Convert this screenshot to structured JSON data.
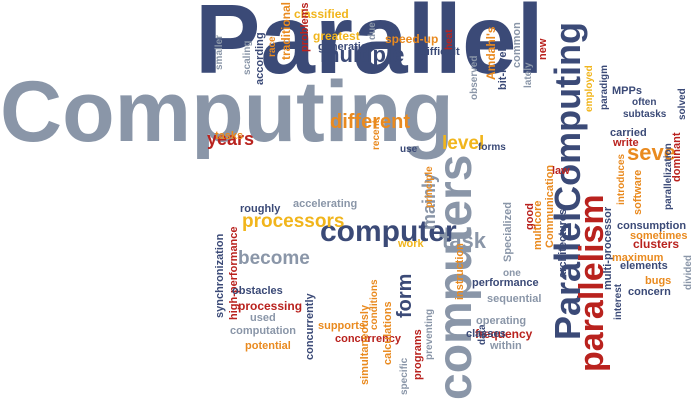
{
  "palette": {
    "navy": "#3b4a77",
    "gray": "#8a96a8",
    "orange": "#e98a1f",
    "yellow": "#f1b51c",
    "red": "#b9221e"
  },
  "words": [
    {
      "t": "Parallel",
      "c": "navy"
    },
    {
      "t": "Computing",
      "c": "gray"
    },
    {
      "t": "ParallelComputing",
      "c": "navy"
    },
    {
      "t": "computers",
      "c": "gray"
    },
    {
      "t": "parallelism",
      "c": "red"
    },
    {
      "t": "computer",
      "c": "navy"
    },
    {
      "t": "multiple",
      "c": "navy"
    },
    {
      "t": "different",
      "c": "orange"
    },
    {
      "t": "years",
      "c": "red"
    },
    {
      "t": "processors",
      "c": "yellow"
    },
    {
      "t": "become",
      "c": "gray"
    },
    {
      "t": "level",
      "c": "yellow"
    },
    {
      "t": "task",
      "c": "gray"
    },
    {
      "t": "form",
      "c": "navy"
    },
    {
      "t": "mainly",
      "c": "gray"
    },
    {
      "t": "seve",
      "c": "orange"
    },
    {
      "t": "classified",
      "c": "yellow"
    },
    {
      "t": "greatest",
      "c": "yellow"
    },
    {
      "t": "generation",
      "c": "navy"
    },
    {
      "t": "speed-up",
      "c": "orange"
    },
    {
      "t": "difficult",
      "c": "navy"
    },
    {
      "t": "heat",
      "c": "red"
    },
    {
      "t": "problems",
      "c": "red"
    },
    {
      "t": "traditional",
      "c": "orange"
    },
    {
      "t": "race",
      "c": "orange"
    },
    {
      "t": "according",
      "c": "navy"
    },
    {
      "t": "scaling",
      "c": "gray"
    },
    {
      "t": "smaller",
      "c": "gray"
    },
    {
      "t": "due",
      "c": "gray"
    },
    {
      "t": "Amdahl's",
      "c": "orange"
    },
    {
      "t": "bit-level",
      "c": "navy"
    },
    {
      "t": "common",
      "c": "gray"
    },
    {
      "t": "lately",
      "c": "gray"
    },
    {
      "t": "observed",
      "c": "gray"
    },
    {
      "t": "new",
      "c": "red"
    },
    {
      "t": "MPPs",
      "c": "navy"
    },
    {
      "t": "often",
      "c": "navy"
    },
    {
      "t": "subtasks",
      "c": "navy"
    },
    {
      "t": "paradigm",
      "c": "navy"
    },
    {
      "t": "employed",
      "c": "yellow"
    },
    {
      "t": "carried",
      "c": "navy"
    },
    {
      "t": "solved",
      "c": "navy"
    },
    {
      "t": "parallelization",
      "c": "navy"
    },
    {
      "t": "write",
      "c": "red"
    },
    {
      "t": "introduces",
      "c": "orange"
    },
    {
      "t": "dominant",
      "c": "red"
    },
    {
      "t": "software",
      "c": "orange"
    },
    {
      "t": "tasks",
      "c": "orange"
    },
    {
      "t": "recent",
      "c": "orange"
    },
    {
      "t": "use",
      "c": "navy"
    },
    {
      "t": "forms",
      "c": "navy"
    },
    {
      "t": "principle",
      "c": "orange"
    },
    {
      "t": "instruction",
      "c": "orange"
    },
    {
      "t": "Specialized",
      "c": "gray"
    },
    {
      "t": "good",
      "c": "red"
    },
    {
      "t": "multicore",
      "c": "orange"
    },
    {
      "t": "Communication",
      "c": "orange"
    },
    {
      "t": "architectures",
      "c": "navy"
    },
    {
      "t": "law",
      "c": "red"
    },
    {
      "t": "multi-processor",
      "c": "navy"
    },
    {
      "t": "consumption",
      "c": "navy"
    },
    {
      "t": "clusters",
      "c": "red"
    },
    {
      "t": "sometimes",
      "c": "orange"
    },
    {
      "t": "maximum",
      "c": "orange"
    },
    {
      "t": "elements",
      "c": "navy"
    },
    {
      "t": "divided",
      "c": "gray"
    },
    {
      "t": "bugs",
      "c": "orange"
    },
    {
      "t": "concern",
      "c": "navy"
    },
    {
      "t": "interest",
      "c": "navy"
    },
    {
      "t": "roughly",
      "c": "navy"
    },
    {
      "t": "accelerating",
      "c": "gray"
    },
    {
      "t": "work",
      "c": "yellow"
    },
    {
      "t": "synchronization",
      "c": "navy"
    },
    {
      "t": "high-performance",
      "c": "red"
    },
    {
      "t": "obstacles",
      "c": "navy"
    },
    {
      "t": "processing",
      "c": "red"
    },
    {
      "t": "used",
      "c": "gray"
    },
    {
      "t": "computation",
      "c": "gray"
    },
    {
      "t": "potential",
      "c": "orange"
    },
    {
      "t": "concurrently",
      "c": "navy"
    },
    {
      "t": "supports",
      "c": "orange"
    },
    {
      "t": "concurrency",
      "c": "red"
    },
    {
      "t": "simultaneously",
      "c": "orange"
    },
    {
      "t": "conditions",
      "c": "orange"
    },
    {
      "t": "calculations",
      "c": "orange"
    },
    {
      "t": "specific",
      "c": "gray"
    },
    {
      "t": "programs",
      "c": "red"
    },
    {
      "t": "preventing",
      "c": "gray"
    },
    {
      "t": "data",
      "c": "navy"
    },
    {
      "t": "performance",
      "c": "navy"
    },
    {
      "t": "one",
      "c": "gray"
    },
    {
      "t": "sequential",
      "c": "gray"
    },
    {
      "t": "frequency",
      "c": "red"
    },
    {
      "t": "operating",
      "c": "gray"
    },
    {
      "t": "classes",
      "c": "navy"
    },
    {
      "t": "within",
      "c": "gray"
    }
  ]
}
